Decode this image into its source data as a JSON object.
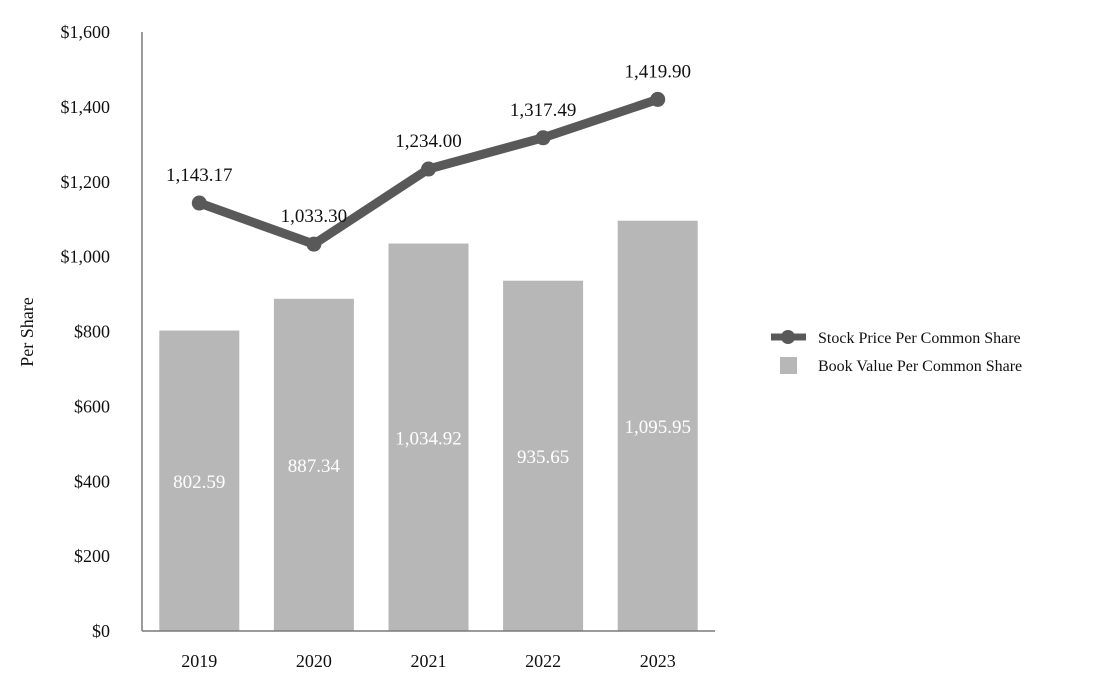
{
  "chart_data": {
    "type": "bar",
    "ylabel": "Per Share",
    "ylim": [
      0,
      1600
    ],
    "ytick_values": [
      0,
      200,
      400,
      600,
      800,
      1000,
      1200,
      1400,
      1600
    ],
    "ytick_labels": [
      "$0",
      "$200",
      "$400",
      "$600",
      "$800",
      "$1,000",
      "$1,200",
      "$1,400",
      "$1,600"
    ],
    "categories": [
      "2019",
      "2020",
      "2021",
      "2022",
      "2023"
    ],
    "legend_position": "right",
    "series": [
      {
        "name": "Book Value Per Common Share",
        "kind": "bar",
        "color": "#b7b7b7",
        "values": [
          802.59,
          887.34,
          1034.92,
          935.65,
          1095.95
        ],
        "labels": [
          "802.59",
          "887.34",
          "1,034.92",
          "935.65",
          "1,095.95"
        ]
      },
      {
        "name": "Stock Price Per Common Share",
        "kind": "line",
        "color": "#595959",
        "values": [
          1143.17,
          1033.3,
          1234.0,
          1317.49,
          1419.9
        ],
        "labels": [
          "1,143.17",
          "1,033.30",
          "1,234.00",
          "1,317.49",
          "1,419.90"
        ]
      }
    ]
  }
}
